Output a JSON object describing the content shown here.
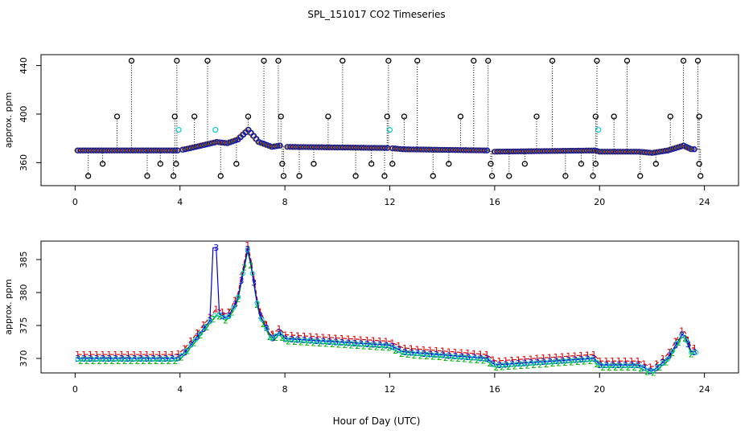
{
  "chart_data": {
    "title": "SPL_151017  CO2 Timeseries",
    "xlabel": "Hour of Day (UTC)",
    "panels": [
      {
        "type": "scatter",
        "ylabel": "approx. ppm",
        "xlim": [
          -1.3,
          25.3
        ],
        "ylim": [
          341,
          449
        ],
        "xticks": [
          0,
          4,
          8,
          12,
          16,
          20,
          24
        ],
        "yticks": [
          360,
          400,
          440
        ],
        "baseline_knots": [
          [
            0.1,
            370
          ],
          [
            2,
            370
          ],
          [
            3.9,
            370
          ],
          [
            4.2,
            371
          ],
          [
            4.6,
            373
          ],
          [
            5.0,
            375
          ],
          [
            5.4,
            377
          ],
          [
            5.8,
            376
          ],
          [
            6.2,
            379
          ],
          [
            6.6,
            387
          ],
          [
            7.0,
            377
          ],
          [
            7.5,
            373
          ],
          [
            7.8,
            374
          ],
          [
            8.0,
            373
          ],
          [
            12.0,
            372
          ],
          [
            12.5,
            371
          ],
          [
            15.7,
            370
          ],
          [
            16.0,
            369
          ],
          [
            19.8,
            370
          ],
          [
            20.0,
            369
          ],
          [
            21.5,
            369
          ],
          [
            22.0,
            368
          ],
          [
            22.6,
            370
          ],
          [
            23.2,
            374
          ],
          [
            23.5,
            371
          ],
          [
            23.7,
            371
          ]
        ],
        "gaps": [
          [
            3.95,
            4.1
          ],
          [
            7.8,
            8.05
          ],
          [
            11.98,
            12.05
          ],
          [
            15.76,
            15.9
          ],
          [
            19.95,
            20.0
          ]
        ],
        "outliers": [
          {
            "x": 2.15,
            "y": 444
          },
          {
            "x": 3.88,
            "y": 444
          },
          {
            "x": 5.05,
            "y": 444
          },
          {
            "x": 7.2,
            "y": 444
          },
          {
            "x": 7.75,
            "y": 444
          },
          {
            "x": 10.2,
            "y": 444
          },
          {
            "x": 11.95,
            "y": 444
          },
          {
            "x": 13.05,
            "y": 444
          },
          {
            "x": 15.2,
            "y": 444
          },
          {
            "x": 15.75,
            "y": 444
          },
          {
            "x": 18.2,
            "y": 444
          },
          {
            "x": 19.9,
            "y": 444
          },
          {
            "x": 21.05,
            "y": 444
          },
          {
            "x": 23.2,
            "y": 444
          },
          {
            "x": 23.75,
            "y": 444
          },
          {
            "x": 1.6,
            "y": 398
          },
          {
            "x": 3.8,
            "y": 398
          },
          {
            "x": 4.55,
            "y": 398
          },
          {
            "x": 6.6,
            "y": 398
          },
          {
            "x": 7.85,
            "y": 398
          },
          {
            "x": 9.65,
            "y": 398
          },
          {
            "x": 11.9,
            "y": 398
          },
          {
            "x": 12.55,
            "y": 398
          },
          {
            "x": 14.7,
            "y": 398
          },
          {
            "x": 17.6,
            "y": 398
          },
          {
            "x": 19.85,
            "y": 398
          },
          {
            "x": 20.55,
            "y": 398
          },
          {
            "x": 22.7,
            "y": 398
          },
          {
            "x": 23.8,
            "y": 398
          },
          {
            "x": 0.5,
            "y": 349
          },
          {
            "x": 2.75,
            "y": 349
          },
          {
            "x": 3.75,
            "y": 349
          },
          {
            "x": 5.55,
            "y": 349
          },
          {
            "x": 7.95,
            "y": 349
          },
          {
            "x": 8.55,
            "y": 349
          },
          {
            "x": 10.7,
            "y": 349
          },
          {
            "x": 11.8,
            "y": 349
          },
          {
            "x": 13.65,
            "y": 349
          },
          {
            "x": 15.9,
            "y": 349
          },
          {
            "x": 16.55,
            "y": 349
          },
          {
            "x": 18.7,
            "y": 349
          },
          {
            "x": 19.75,
            "y": 349
          },
          {
            "x": 21.55,
            "y": 349
          },
          {
            "x": 23.85,
            "y": 349
          },
          {
            "x": 1.05,
            "y": 359
          },
          {
            "x": 3.25,
            "y": 359
          },
          {
            "x": 3.85,
            "y": 359
          },
          {
            "x": 6.15,
            "y": 359
          },
          {
            "x": 7.9,
            "y": 359
          },
          {
            "x": 9.1,
            "y": 359
          },
          {
            "x": 11.3,
            "y": 359
          },
          {
            "x": 12.1,
            "y": 359
          },
          {
            "x": 14.25,
            "y": 359
          },
          {
            "x": 15.85,
            "y": 359
          },
          {
            "x": 17.15,
            "y": 359
          },
          {
            "x": 19.3,
            "y": 359
          },
          {
            "x": 19.85,
            "y": 359
          },
          {
            "x": 22.15,
            "y": 359
          },
          {
            "x": 23.8,
            "y": 359
          }
        ],
        "cyan_points": [
          {
            "x": 3.95,
            "y": 387
          },
          {
            "x": 5.35,
            "y": 387
          },
          {
            "x": 12.0,
            "y": 387
          },
          {
            "x": 19.95,
            "y": 387
          }
        ]
      },
      {
        "type": "line",
        "ylabel": "approx. ppm",
        "xlim": [
          -1.3,
          25.3
        ],
        "ylim": [
          367.8,
          387.8
        ],
        "xticks": [
          0,
          4,
          8,
          12,
          16,
          20,
          24
        ],
        "yticks": [
          370,
          375,
          380,
          385
        ],
        "series": [
          {
            "name": "1",
            "color": "#e00000",
            "offset": 0.6
          },
          {
            "name": "2",
            "color": "#00b000",
            "offset": -0.35
          },
          {
            "name": "3",
            "color": "#0000e0",
            "offset": 0.0
          }
        ],
        "spike": {
          "x": 5.35,
          "peak": 386.8
        },
        "baseline_knots": [
          [
            0.1,
            370
          ],
          [
            2,
            370
          ],
          [
            3.9,
            370
          ],
          [
            4.2,
            371
          ],
          [
            4.6,
            373
          ],
          [
            5.0,
            375
          ],
          [
            5.4,
            377
          ],
          [
            5.8,
            376
          ],
          [
            6.2,
            379
          ],
          [
            6.6,
            387
          ],
          [
            7.0,
            377
          ],
          [
            7.5,
            373
          ],
          [
            7.8,
            374
          ],
          [
            8.0,
            373
          ],
          [
            12.0,
            372
          ],
          [
            12.5,
            371
          ],
          [
            15.7,
            370
          ],
          [
            16.0,
            369
          ],
          [
            19.8,
            370
          ],
          [
            20.0,
            369
          ],
          [
            21.5,
            369
          ],
          [
            22.0,
            368
          ],
          [
            22.6,
            370
          ],
          [
            23.2,
            374
          ],
          [
            23.5,
            371
          ],
          [
            23.7,
            371
          ]
        ]
      }
    ]
  }
}
